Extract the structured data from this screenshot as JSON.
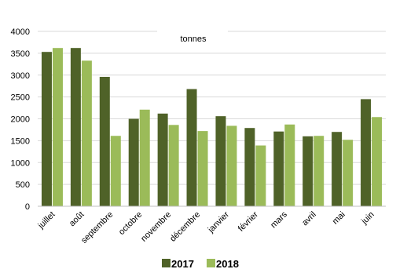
{
  "chart_data": {
    "type": "bar",
    "title": "",
    "unit_label": "tonnes",
    "xlabel": "",
    "ylabel": "",
    "ylim": [
      0,
      4000
    ],
    "yticks": [
      0,
      500,
      1000,
      1500,
      2000,
      2500,
      3000,
      3500,
      4000
    ],
    "grid": true,
    "legend_position": "bottom",
    "categories": [
      "juillet",
      "août",
      "septembre",
      "octobre",
      "novembre",
      "décembre",
      "janvier",
      "février",
      "mars",
      "avril",
      "mai",
      "juin"
    ],
    "series": [
      {
        "name": "2017",
        "color": "#4f6228",
        "values": [
          3530,
          3620,
          2960,
          2000,
          2120,
          2680,
          2060,
          1790,
          1710,
          1600,
          1700,
          2450
        ]
      },
      {
        "name": "2018",
        "color": "#9bbb59",
        "values": [
          3620,
          3330,
          1610,
          2210,
          1860,
          1720,
          1840,
          1390,
          1870,
          1610,
          1520,
          2040
        ]
      }
    ]
  }
}
